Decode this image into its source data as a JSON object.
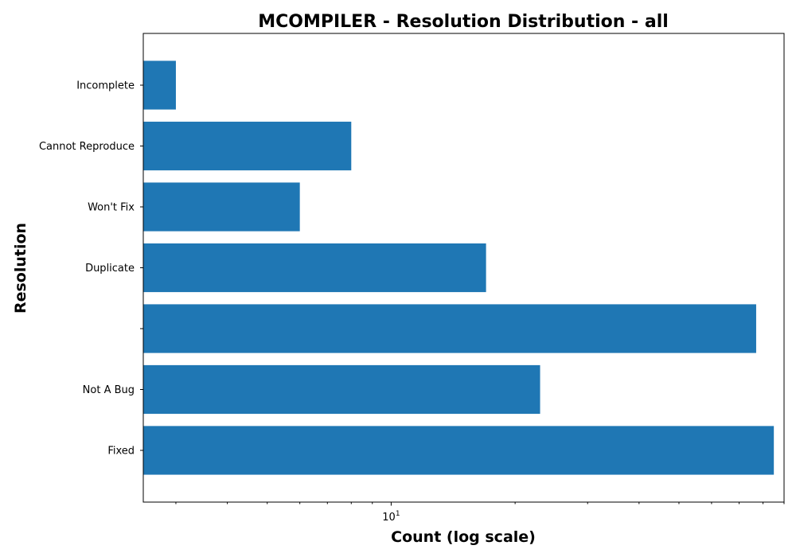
{
  "chart_data": {
    "type": "bar",
    "orientation": "horizontal",
    "title": "MCOMPILER - Resolution Distribution - all",
    "xlabel": "Count (log scale)",
    "ylabel": "Resolution",
    "x_scale": "log",
    "xlim": [
      2.5,
      90
    ],
    "x_major_ticks": [
      10
    ],
    "x_minor_ticks": [
      3,
      4,
      5,
      6,
      7,
      8,
      9,
      20,
      30,
      40,
      50,
      60,
      70,
      80,
      90
    ],
    "categories": [
      "Fixed",
      "Not A Bug",
      "",
      "Duplicate",
      "Won't Fix",
      "Cannot Reproduce",
      "Incomplete"
    ],
    "values": [
      85,
      23,
      77,
      17,
      6,
      8,
      3
    ],
    "color": "#1f77b4",
    "grid": false,
    "legend": "none"
  }
}
